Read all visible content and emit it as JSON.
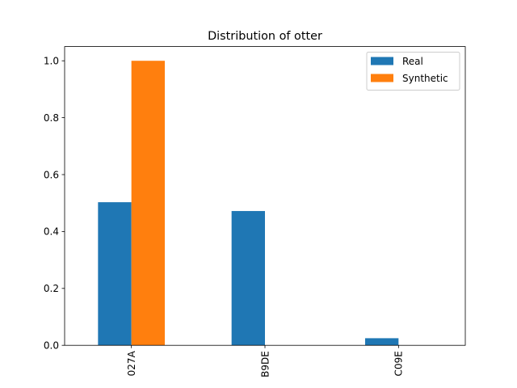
{
  "chart_data": {
    "type": "bar",
    "title": "Distribution of otter",
    "xlabel": "",
    "ylabel": "",
    "categories": [
      "027A",
      "B9DE",
      "C09E"
    ],
    "series": [
      {
        "name": "Real",
        "color": "#1f77b4",
        "values": [
          0.503,
          0.472,
          0.025
        ]
      },
      {
        "name": "Synthetic",
        "color": "#ff7f0e",
        "values": [
          1.0,
          0.0,
          0.0
        ]
      }
    ],
    "ylim": [
      0,
      1.05
    ],
    "yticks": [
      "0.0",
      "0.2",
      "0.4",
      "0.6",
      "0.8",
      "1.0"
    ],
    "xtick_rotation": "vertical",
    "grid": false,
    "legend": "top-right"
  }
}
